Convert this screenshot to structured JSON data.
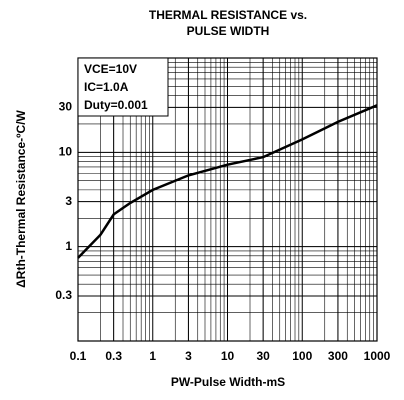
{
  "chart_data": {
    "type": "line",
    "title": [
      "THERMAL RESISTANCE vs.",
      "PULSE WIDTH"
    ],
    "xlabel": "PW-Pulse Width-mS",
    "ylabel": "ΔRth-Thermal Resistance-ºC/W",
    "annotations": [
      "VCE=10V",
      "IC=1.0A",
      "Duty=0.001"
    ],
    "log_x": true,
    "log_y": true,
    "grid": true,
    "xlim": [
      0.1,
      1000
    ],
    "ylim": [
      0.1,
      100
    ],
    "xticks": [
      0.1,
      0.3,
      1,
      3,
      10,
      30,
      100,
      300,
      1000
    ],
    "yticks": [
      0.3,
      1,
      3,
      10,
      30
    ],
    "series": [
      {
        "color": "#000000",
        "x": [
          0.1,
          0.2,
          0.3,
          0.5,
          1,
          3,
          10,
          30,
          100,
          300,
          1000
        ],
        "values": [
          0.76,
          1.34,
          2.2,
          2.9,
          4.0,
          5.7,
          7.4,
          8.9,
          13.7,
          21,
          31.5
        ]
      }
    ]
  }
}
